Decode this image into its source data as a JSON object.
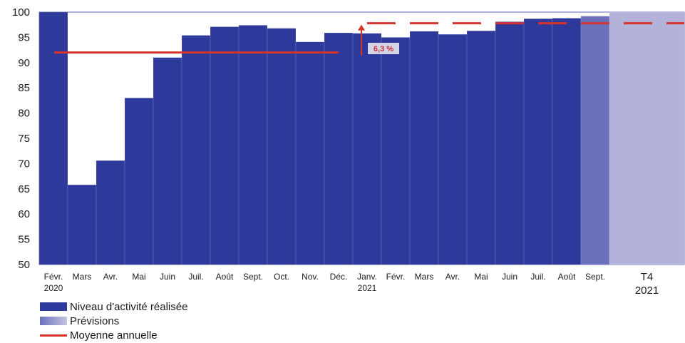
{
  "chart_data": {
    "type": "bar",
    "ylim": [
      50,
      100
    ],
    "yticks": [
      "50",
      "55",
      "60",
      "65",
      "70",
      "75",
      "80",
      "85",
      "90",
      "95",
      "100"
    ],
    "categories": [
      {
        "label": "Févr.",
        "year": "2020"
      },
      {
        "label": "Mars",
        "year": ""
      },
      {
        "label": "Avr.",
        "year": ""
      },
      {
        "label": "Mai",
        "year": ""
      },
      {
        "label": "Juin",
        "year": ""
      },
      {
        "label": "Juil.",
        "year": ""
      },
      {
        "label": "Août",
        "year": ""
      },
      {
        "label": "Sept.",
        "year": ""
      },
      {
        "label": "Oct.",
        "year": ""
      },
      {
        "label": "Nov.",
        "year": ""
      },
      {
        "label": "Déc.",
        "year": ""
      },
      {
        "label": "Janv.",
        "year": "2021"
      },
      {
        "label": "Févr.",
        "year": ""
      },
      {
        "label": "Mars",
        "year": ""
      },
      {
        "label": "Avr.",
        "year": ""
      },
      {
        "label": "Mai",
        "year": ""
      },
      {
        "label": "Juin",
        "year": ""
      },
      {
        "label": "Juil.",
        "year": ""
      },
      {
        "label": "Août",
        "year": ""
      },
      {
        "label": "Sept.",
        "year": ""
      },
      {
        "label": "T4",
        "year": "2021"
      }
    ],
    "series": [
      {
        "name": "Niveau d'activité réalisée",
        "color": "#2e3a9b",
        "values": [
          100,
          65.8,
          70.6,
          83,
          91,
          95.4,
          97.1,
          97.4,
          96.8,
          94.1,
          95.9,
          95.8,
          95,
          96.2,
          95.6,
          96.3,
          98.1,
          98.7,
          98.8,
          null,
          null
        ]
      },
      {
        "name": "Prévisions",
        "colors": [
          "#6b70bd",
          "#b3b3d9"
        ],
        "values": [
          null,
          null,
          null,
          null,
          null,
          null,
          null,
          null,
          null,
          null,
          null,
          null,
          null,
          null,
          null,
          null,
          null,
          null,
          null,
          99.2,
          100
        ]
      }
    ],
    "annual_average": {
      "name": "Moyenne annuelle",
      "color": "#d6332b",
      "y2020": 92.0,
      "y2021": 97.8
    },
    "annotation": "6,3 %",
    "legend_position": "bottom-left"
  }
}
